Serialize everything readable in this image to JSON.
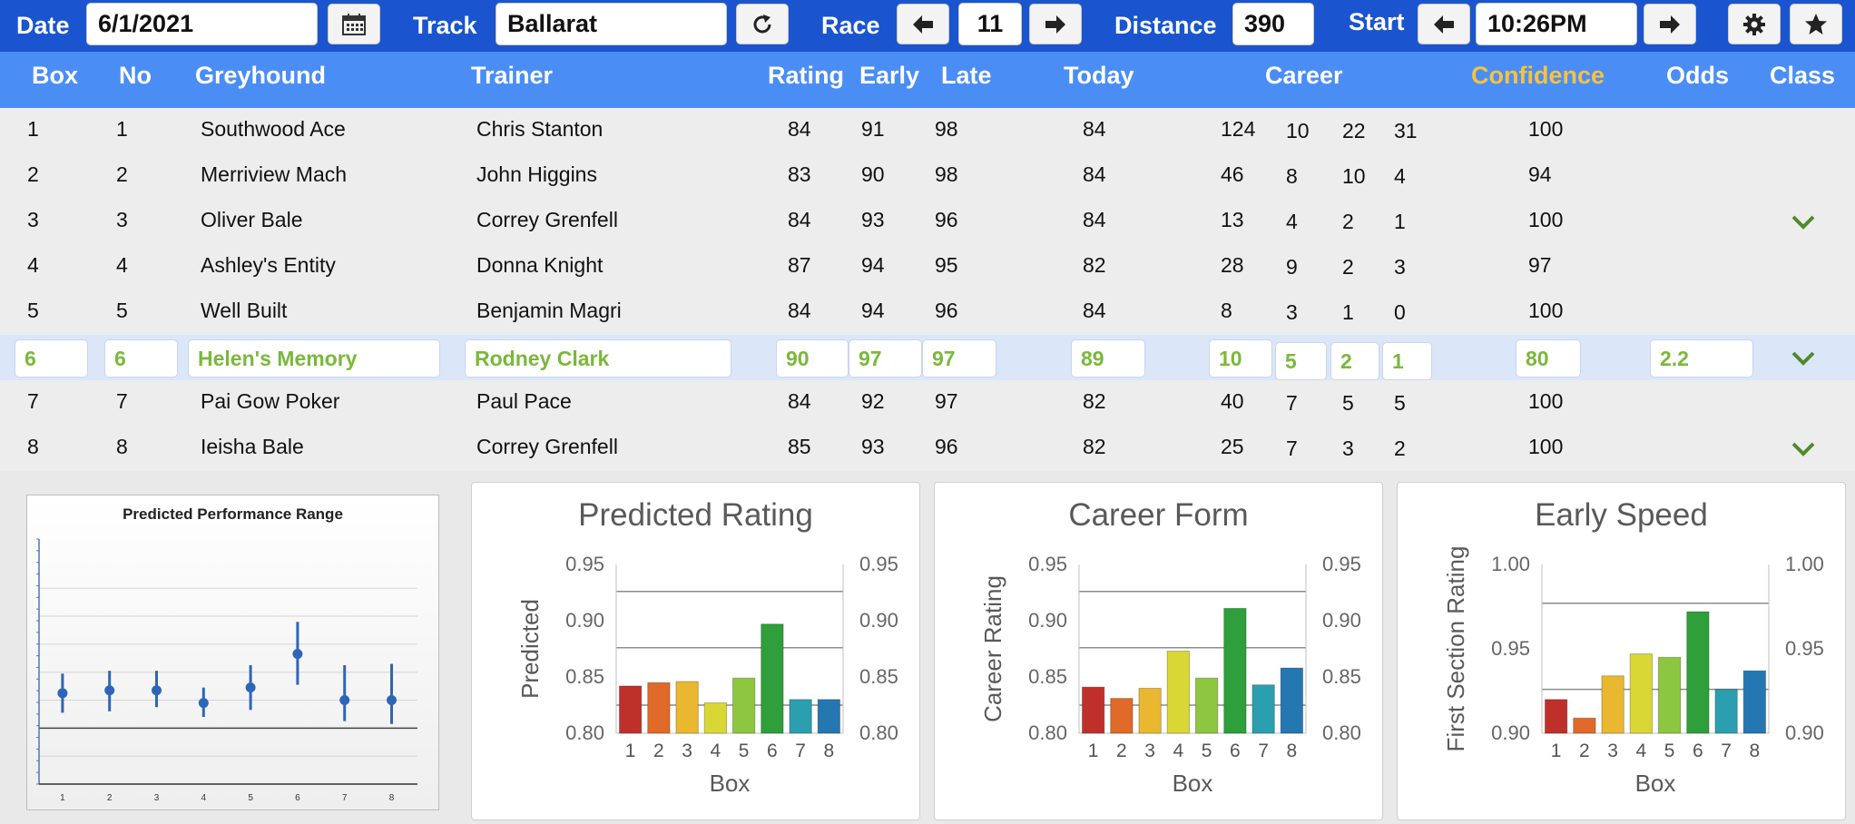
{
  "toolbar": {
    "date_label": "Date",
    "date_value": "6/1/2021",
    "track_label": "Track",
    "track_value": "Ballarat",
    "race_label": "Race",
    "race_value": "11",
    "distance_label": "Distance",
    "distance_value": "390",
    "start_label": "Start",
    "start_value": "10:26PM"
  },
  "columns": {
    "box": "Box",
    "no": "No",
    "greyhound": "Greyhound",
    "trainer": "Trainer",
    "rating": "Rating",
    "early": "Early",
    "late": "Late",
    "today": "Today",
    "career": "Career",
    "confidence": "Confidence",
    "odds": "Odds",
    "class": "Class"
  },
  "rows": [
    {
      "box": "1",
      "no": "1",
      "greyhound": "Southwood Ace",
      "trainer": "Chris Stanton",
      "rating": "84",
      "early": "91",
      "late": "98",
      "today": "84",
      "c1": "124",
      "c2": "10",
      "c3": "22",
      "c4": "31",
      "confidence": "100",
      "odds": "",
      "class": false
    },
    {
      "box": "2",
      "no": "2",
      "greyhound": "Merriview Mach",
      "trainer": "John Higgins",
      "rating": "83",
      "early": "90",
      "late": "98",
      "today": "84",
      "c1": "46",
      "c2": "8",
      "c3": "10",
      "c4": "4",
      "confidence": "94",
      "odds": "",
      "class": false
    },
    {
      "box": "3",
      "no": "3",
      "greyhound": "Oliver Bale",
      "trainer": "Correy Grenfell",
      "rating": "84",
      "early": "93",
      "late": "96",
      "today": "84",
      "c1": "13",
      "c2": "4",
      "c3": "2",
      "c4": "1",
      "confidence": "100",
      "odds": "",
      "class": true
    },
    {
      "box": "4",
      "no": "4",
      "greyhound": "Ashley's Entity",
      "trainer": "Donna Knight",
      "rating": "87",
      "early": "94",
      "late": "95",
      "today": "82",
      "c1": "28",
      "c2": "9",
      "c3": "2",
      "c4": "3",
      "confidence": "97",
      "odds": "",
      "class": false
    },
    {
      "box": "5",
      "no": "5",
      "greyhound": "Well Built",
      "trainer": "Benjamin Magri",
      "rating": "84",
      "early": "94",
      "late": "96",
      "today": "84",
      "c1": "8",
      "c2": "3",
      "c3": "1",
      "c4": "0",
      "confidence": "100",
      "odds": "",
      "class": false
    },
    {
      "box": "6",
      "no": "6",
      "greyhound": "Helen's Memory",
      "trainer": "Rodney Clark",
      "rating": "90",
      "early": "97",
      "late": "97",
      "today": "89",
      "c1": "10",
      "c2": "5",
      "c3": "2",
      "c4": "1",
      "confidence": "80",
      "odds": "2.2",
      "class": true
    },
    {
      "box": "7",
      "no": "7",
      "greyhound": "Pai Gow Poker",
      "trainer": "Paul Pace",
      "rating": "84",
      "early": "92",
      "late": "97",
      "today": "82",
      "c1": "40",
      "c2": "7",
      "c3": "5",
      "c4": "5",
      "confidence": "100",
      "odds": "",
      "class": false
    },
    {
      "box": "8",
      "no": "8",
      "greyhound": "Ieisha Bale",
      "trainer": "Correy Grenfell",
      "rating": "85",
      "early": "93",
      "late": "96",
      "today": "82",
      "c1": "25",
      "c2": "7",
      "c3": "3",
      "c4": "2",
      "confidence": "100",
      "odds": "",
      "class": true
    }
  ],
  "selected_row_index": 5,
  "colors": {
    "toolbar": "#1a55cf",
    "header": "#4a8ef5",
    "selected_row": "#dbe7f8",
    "selected_text": "#7ab83a",
    "confidence_header": "#f5c242",
    "check": "#4f8a2e",
    "bars": [
      "#c0302b",
      "#e06a2a",
      "#eab730",
      "#d9d736",
      "#8dc63f",
      "#2e9f3a",
      "#2b9fb0",
      "#2477b0"
    ]
  },
  "chart_data": [
    {
      "type": "scatter",
      "title": "Predicted Performance Range",
      "x": [
        "1",
        "2",
        "3",
        "4",
        "5",
        "6",
        "7",
        "8"
      ],
      "y": [
        0.865,
        0.867,
        0.867,
        0.858,
        0.869,
        0.893,
        0.86,
        0.86
      ],
      "low": [
        0.851,
        0.852,
        0.855,
        0.848,
        0.853,
        0.871,
        0.845,
        0.843
      ],
      "high": [
        0.879,
        0.881,
        0.881,
        0.869,
        0.885,
        0.916,
        0.885,
        0.886
      ],
      "ylim": [
        0.8,
        0.97
      ],
      "grid": true
    },
    {
      "type": "bar",
      "title": "Predicted Rating",
      "categories": [
        "1",
        "2",
        "3",
        "4",
        "5",
        "6",
        "7",
        "8"
      ],
      "values": [
        0.842,
        0.845,
        0.846,
        0.827,
        0.849,
        0.897,
        0.83,
        0.83
      ],
      "xlabel": "Box",
      "ylabel": "Predicted",
      "ylim": [
        0.8,
        0.95
      ],
      "yticks": [
        "0.80",
        "0.85",
        "0.90",
        "0.95"
      ],
      "gridlines": [
        0.825,
        0.876,
        0.926
      ]
    },
    {
      "type": "bar",
      "title": "Career Form",
      "categories": [
        "1",
        "2",
        "3",
        "4",
        "5",
        "6",
        "7",
        "8"
      ],
      "values": [
        0.841,
        0.831,
        0.84,
        0.873,
        0.849,
        0.911,
        0.843,
        0.858
      ],
      "xlabel": "Box",
      "ylabel": "Career Rating",
      "ylim": [
        0.8,
        0.95
      ],
      "yticks": [
        "0.80",
        "0.85",
        "0.90",
        "0.95"
      ],
      "gridlines": [
        0.825,
        0.876,
        0.926
      ]
    },
    {
      "type": "bar",
      "title": "Early Speed",
      "categories": [
        "1",
        "2",
        "3",
        "4",
        "5",
        "6",
        "7",
        "8"
      ],
      "values": [
        0.92,
        0.909,
        0.934,
        0.947,
        0.945,
        0.972,
        0.926,
        0.937
      ],
      "xlabel": "Box",
      "ylabel": "First Section Rating",
      "ylim": [
        0.9,
        1.0
      ],
      "yticks": [
        "0.90",
        "0.95",
        "1.00"
      ],
      "gridlines": [
        0.926,
        0.977
      ]
    }
  ]
}
